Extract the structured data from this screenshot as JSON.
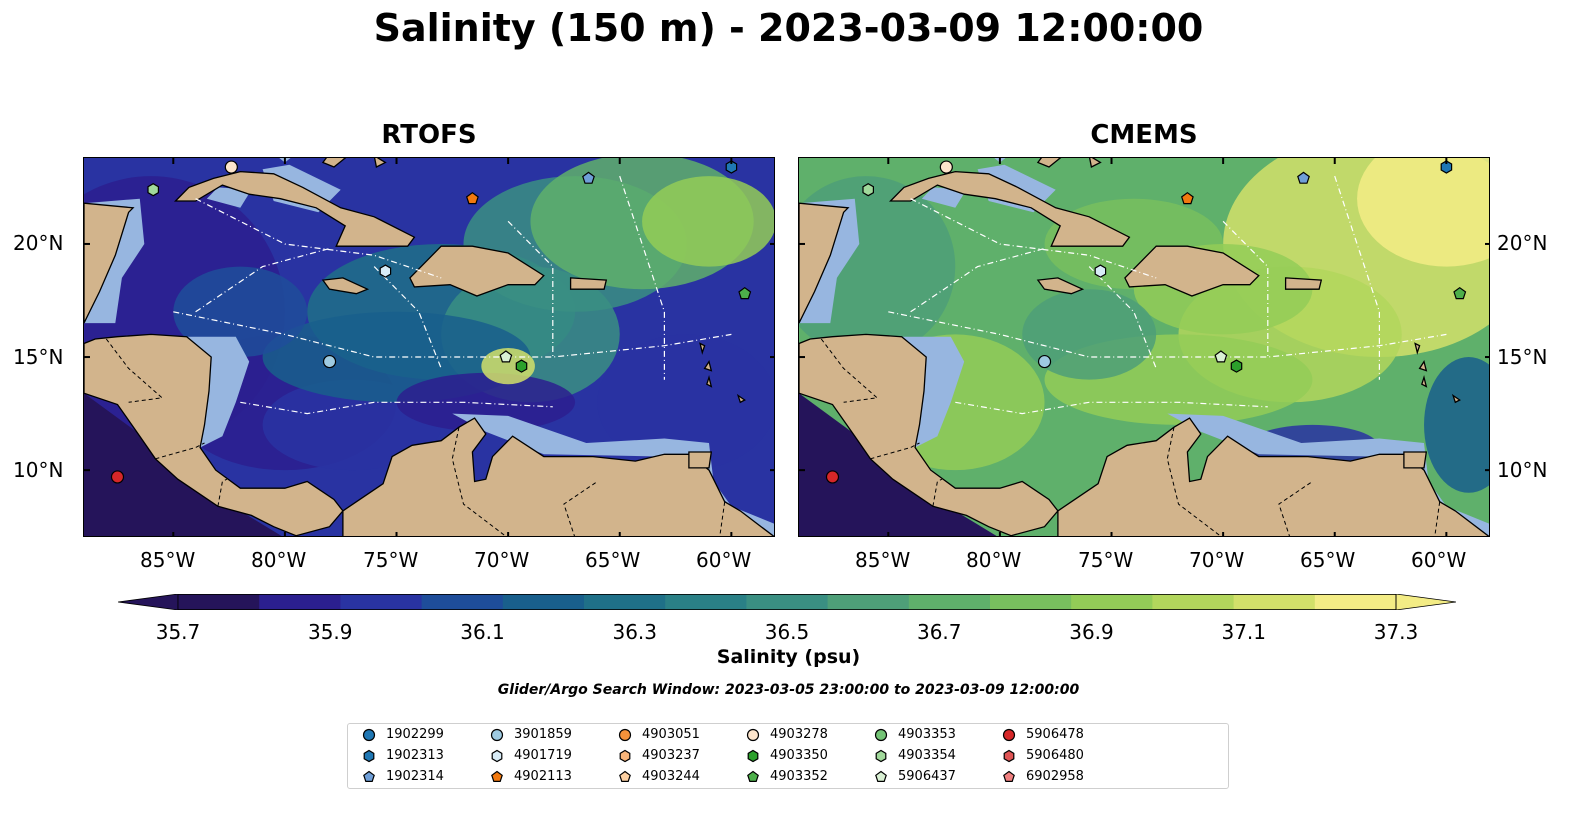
{
  "title": "Salinity (150 m) - 2023-03-09 12:00:00",
  "panels": [
    {
      "title": "RTOFS",
      "scheme": "low"
    },
    {
      "title": "CMEMS",
      "scheme": "high"
    }
  ],
  "axes": {
    "lon_ticks": [
      "85°W",
      "80°W",
      "75°W",
      "70°W",
      "65°W",
      "60°W"
    ],
    "lat_ticks": [
      "20°N",
      "15°N",
      "10°N"
    ]
  },
  "colorbar": {
    "label": "Salinity (psu)",
    "ticks": [
      "35.7",
      "35.9",
      "36.1",
      "36.3",
      "36.5",
      "36.7",
      "36.9",
      "37.1",
      "37.3"
    ],
    "range": [
      35.7,
      37.3
    ],
    "colors": [
      "#25145a",
      "#2b1f8f",
      "#2933a2",
      "#1e4d9a",
      "#195f8c",
      "#1f7088",
      "#2a8086",
      "#3a8f82",
      "#4e9f78",
      "#5fb06b",
      "#78bf5e",
      "#93cc57",
      "#b2d65c",
      "#d2e06a",
      "#f3ec85"
    ]
  },
  "search_window": "Glider/Argo Search Window: 2023-03-05 23:00:00 to 2023-03-09 12:00:00",
  "legend": [
    {
      "id": "1902299",
      "shape": "circle",
      "color": "#1f77b4"
    },
    {
      "id": "1902313",
      "shape": "hexagon",
      "color": "#1f77b4"
    },
    {
      "id": "1902314",
      "shape": "pentagon",
      "color": "#6f9fd8"
    },
    {
      "id": "3901859",
      "shape": "circle",
      "color": "#9ecae1"
    },
    {
      "id": "4901719",
      "shape": "hexagon",
      "color": "#d8ecf7"
    },
    {
      "id": "4902113",
      "shape": "pentagon",
      "color": "#f2790f"
    },
    {
      "id": "4903051",
      "shape": "circle",
      "color": "#f5923a"
    },
    {
      "id": "4903237",
      "shape": "hexagon",
      "color": "#f8b57a"
    },
    {
      "id": "4903244",
      "shape": "pentagon",
      "color": "#fdd0a2"
    },
    {
      "id": "4903278",
      "shape": "circle",
      "color": "#fde5cc"
    },
    {
      "id": "4903350",
      "shape": "hexagon",
      "color": "#2ca02c"
    },
    {
      "id": "4903352",
      "shape": "pentagon",
      "color": "#4daf4a"
    },
    {
      "id": "4903353",
      "shape": "circle",
      "color": "#74c476"
    },
    {
      "id": "4903354",
      "shape": "hexagon",
      "color": "#a1d99b"
    },
    {
      "id": "5906437",
      "shape": "pentagon",
      "color": "#d9f0d3"
    },
    {
      "id": "5906478",
      "shape": "circle",
      "color": "#d62728"
    },
    {
      "id": "5906480",
      "shape": "hexagon",
      "color": "#e05555"
    },
    {
      "id": "6902958",
      "shape": "pentagon",
      "color": "#f08080"
    }
  ],
  "floats_on_map": [
    {
      "id": "4903278",
      "lon": -82.4,
      "lat": 23.4
    },
    {
      "id": "4903354",
      "lon": -85.9,
      "lat": 22.4
    },
    {
      "id": "4902113",
      "lon": -71.6,
      "lat": 22.0
    },
    {
      "id": "1902314",
      "lon": -66.4,
      "lat": 22.9
    },
    {
      "id": "1902313",
      "lon": -60.0,
      "lat": 23.4
    },
    {
      "id": "4901719",
      "lon": -75.5,
      "lat": 18.8
    },
    {
      "id": "4903352",
      "lon": -59.4,
      "lat": 17.8
    },
    {
      "id": "3901859",
      "lon": -78.0,
      "lat": 14.8
    },
    {
      "id": "5906437",
      "lon": -70.1,
      "lat": 15.0
    },
    {
      "id": "4903350",
      "lon": -69.4,
      "lat": 14.6
    },
    {
      "id": "5906478",
      "lon": -87.5,
      "lat": 9.7
    }
  ],
  "extent": {
    "lon": [
      -89,
      -58
    ],
    "lat": [
      7,
      23.8
    ]
  }
}
